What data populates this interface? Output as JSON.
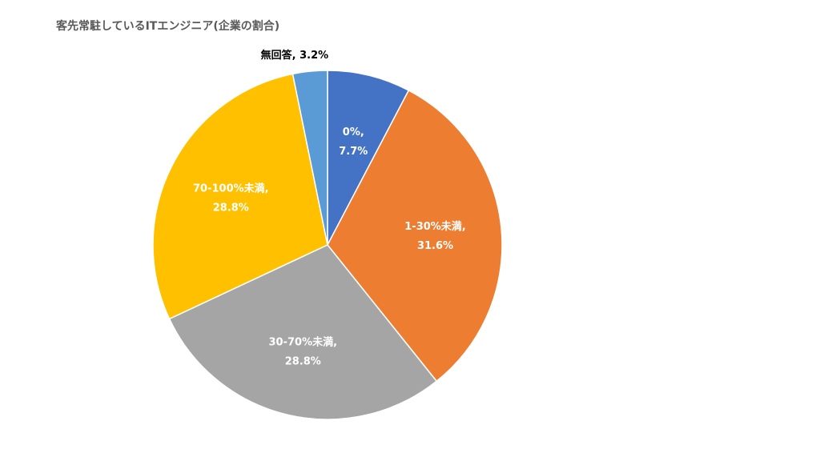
{
  "chart_data": {
    "type": "pie",
    "title": "客先常駐しているITエンジニア(企業の割合)",
    "slices": [
      {
        "name": "0%",
        "value": 7.7,
        "color": "#4472C4",
        "label_line1": "0%,",
        "label_line2": "7.7%",
        "label_color": "#ffffff",
        "label_placement": "inside"
      },
      {
        "name": "1-30%未満",
        "value": 31.6,
        "color": "#ED7D31",
        "label_line1": "1-30%未満,",
        "label_line2": "31.6%",
        "label_color": "#ffffff",
        "label_placement": "inside"
      },
      {
        "name": "30-70%未満",
        "value": 28.8,
        "color": "#A5A5A5",
        "label_line1": "30-70%未満,",
        "label_line2": "28.8%",
        "label_color": "#ffffff",
        "label_placement": "inside"
      },
      {
        "name": "70-100%未満",
        "value": 28.8,
        "color": "#FFC000",
        "label_line1": "70-100%未満,",
        "label_line2": "28.8%",
        "label_color": "#ffffff",
        "label_placement": "inside"
      },
      {
        "name": "無回答",
        "value": 3.2,
        "color": "#5B9BD5",
        "label_line1": "無回答, 3.2%",
        "label_line2": "",
        "label_color": "#000000",
        "label_placement": "outside"
      }
    ],
    "legend": "none",
    "start_angle": "12 o'clock",
    "direction": "clockwise"
  }
}
